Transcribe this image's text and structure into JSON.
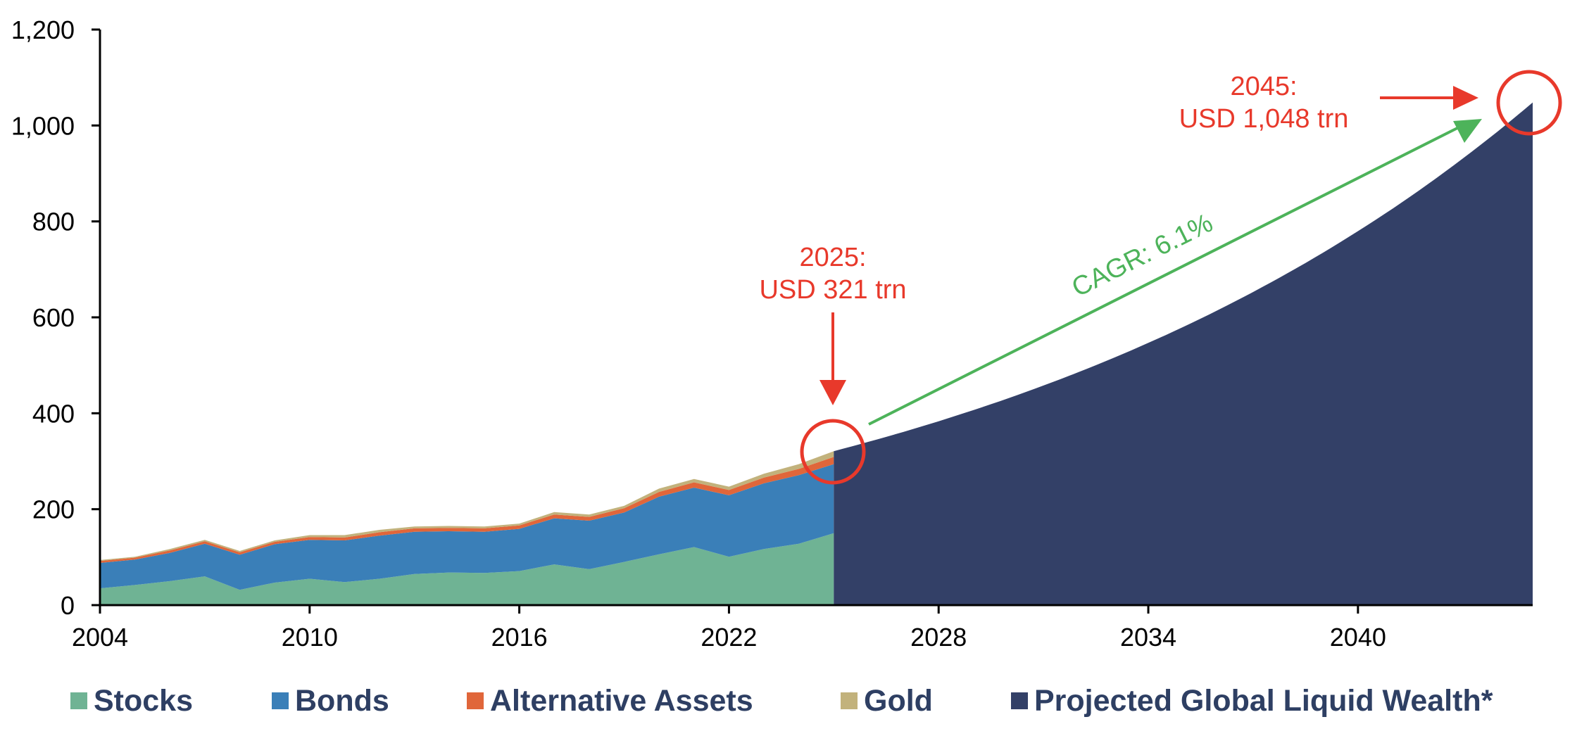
{
  "chart_data": {
    "type": "area",
    "x_type": "year",
    "xlim": [
      2004,
      2045
    ],
    "ylim": [
      0,
      1200
    ],
    "x_ticks": [
      "2004",
      "2010",
      "2016",
      "2022",
      "2028",
      "2034",
      "2040"
    ],
    "y_ticks": [
      "0",
      "200",
      "400",
      "600",
      "800",
      "1,000",
      "1,200"
    ],
    "x": [
      2004,
      2005,
      2006,
      2007,
      2008,
      2009,
      2010,
      2011,
      2012,
      2013,
      2014,
      2015,
      2016,
      2017,
      2018,
      2019,
      2020,
      2021,
      2022,
      2023,
      2024,
      2025
    ],
    "series": [
      {
        "name": "Stocks",
        "color": "#6fb394",
        "values": [
          35,
          42,
          50,
          60,
          32,
          47,
          55,
          48,
          55,
          65,
          68,
          67,
          71,
          85,
          75,
          90,
          106,
          121,
          101,
          117,
          128,
          150
        ]
      },
      {
        "name": "Bonds",
        "color": "#3a7fb8",
        "values": [
          53,
          53,
          59,
          68,
          73,
          80,
          81,
          87,
          90,
          88,
          86,
          86,
          88,
          96,
          101,
          103,
          120,
          124,
          128,
          137,
          143,
          144
        ]
      },
      {
        "name": "Alternative Assets",
        "color": "#e0663a",
        "values": [
          4,
          4,
          5,
          5,
          5,
          5,
          6,
          6,
          7,
          7,
          7,
          7,
          7,
          8,
          8,
          9,
          10,
          11,
          11,
          12,
          13,
          15
        ]
      },
      {
        "name": "Gold",
        "color": "#c2b27c",
        "values": [
          2,
          2,
          3,
          3,
          3,
          3,
          4,
          5,
          5,
          4,
          4,
          4,
          4,
          5,
          5,
          5,
          7,
          7,
          7,
          8,
          10,
          12
        ]
      }
    ],
    "projection": {
      "name": "Projected Global Liquid Wealth*",
      "color": "#334067",
      "start_year": 2025,
      "start_value": 321,
      "end_year": 2045,
      "end_value": 1048,
      "cagr": 0.061
    },
    "annotations": {
      "a2025_line1": "2025:",
      "a2025_line2": "USD 321 trn",
      "a2045_line1": "2045:",
      "a2045_line2": "USD 1,048 trn",
      "cagr": "CAGR: 6.1%"
    },
    "annotation_colors": {
      "red": "#e8392b",
      "green": "#4db35a"
    },
    "legend_position": "bottom",
    "grid": false
  }
}
